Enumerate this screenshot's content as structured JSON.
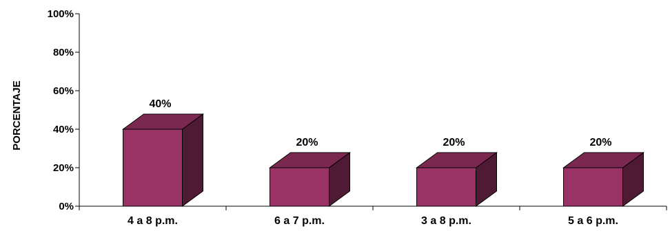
{
  "chart_data": {
    "type": "bar",
    "style": "3d",
    "ylabel": "PORCENTAJE",
    "xlabel": "",
    "ylim": [
      0,
      100
    ],
    "y_ticks": [
      "0%",
      "20%",
      "40%",
      "60%",
      "80%",
      "100%"
    ],
    "categories": [
      "4 a 8 p.m.",
      "6 a 7 p.m.",
      "3 a 8 p.m.",
      "5 a 6 p.m."
    ],
    "values": [
      40,
      20,
      20,
      20
    ],
    "data_labels": [
      "40%",
      "20%",
      "20%",
      "20%"
    ],
    "colors": {
      "front": "#993366",
      "top": "#7a2850",
      "side": "#4f1a33",
      "axis": "#000000"
    },
    "grid": false,
    "legend": "none"
  }
}
